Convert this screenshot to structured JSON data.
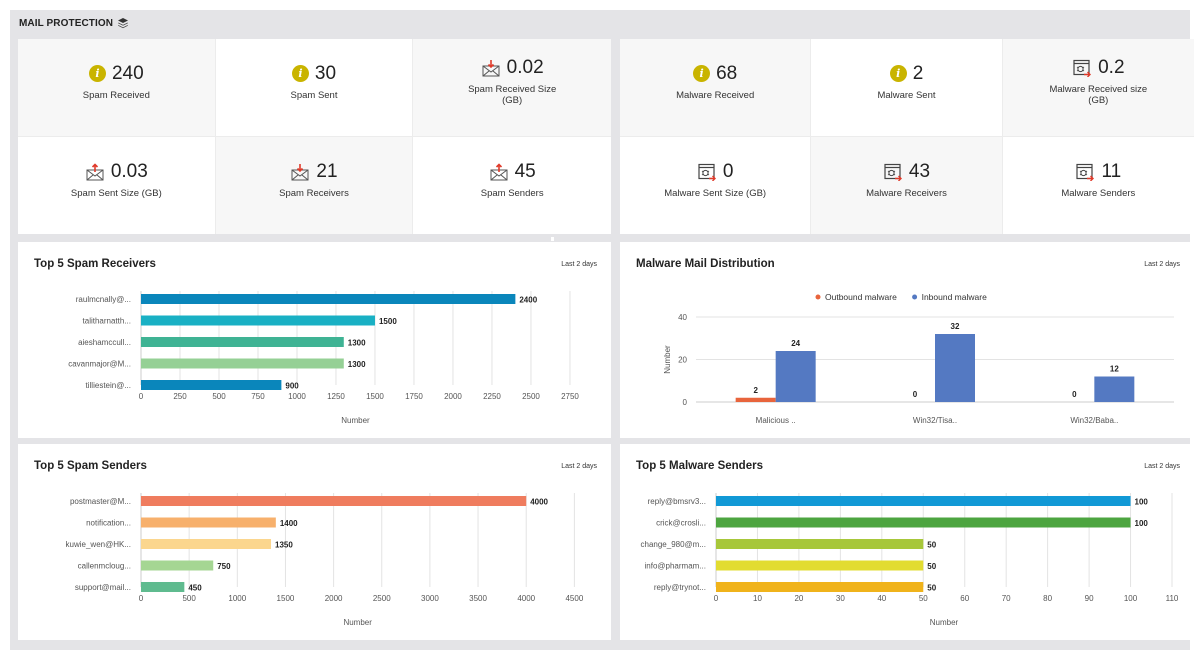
{
  "section": {
    "title": "MAIL PROTECTION",
    "icon": "layers-icon"
  },
  "spam_stats": [
    {
      "icon": "info-icon",
      "value": "240",
      "label": "Spam Received"
    },
    {
      "icon": "info-icon",
      "value": "30",
      "label": "Spam Sent"
    },
    {
      "icon": "mail-in-icon",
      "value": "0.02",
      "label": "Spam Received Size (GB)"
    },
    {
      "icon": "mail-out-icon",
      "value": "0.03",
      "label": "Spam Sent Size (GB)"
    },
    {
      "icon": "mail-in-icon",
      "value": "21",
      "label": "Spam Receivers"
    },
    {
      "icon": "mail-out-icon",
      "value": "45",
      "label": "Spam Senders"
    }
  ],
  "malware_stats": [
    {
      "icon": "info-icon",
      "value": "68",
      "label": "Malware Received"
    },
    {
      "icon": "info-icon",
      "value": "2",
      "label": "Malware Sent"
    },
    {
      "icon": "malware-window-icon",
      "value": "0.2",
      "label": "Malware Received size (GB)"
    },
    {
      "icon": "malware-window-icon",
      "value": "0",
      "label": "Malware Sent Size (GB)"
    },
    {
      "icon": "malware-window-icon",
      "value": "43",
      "label": "Malware Receivers"
    },
    {
      "icon": "malware-window-icon",
      "value": "11",
      "label": "Malware Senders"
    }
  ],
  "cards": {
    "spam_receivers": {
      "title": "Top 5 Spam Receivers",
      "range": "Last 2 days"
    },
    "malware_dist": {
      "title": "Malware Mail Distribution",
      "range": "Last 2 days"
    },
    "spam_senders": {
      "title": "Top 5 Spam Senders",
      "range": "Last 2 days"
    },
    "malware_senders": {
      "title": "Top 5 Malware Senders",
      "range": "Last 2 days"
    }
  },
  "chart_data": [
    {
      "id": "spam_receivers",
      "type": "bar",
      "orientation": "horizontal",
      "categories": [
        "raulmcnally@...",
        "talitharnatth...",
        "aieshamccull...",
        "cavanmajor@M...",
        "tilliestein@..."
      ],
      "values": [
        2400,
        1500,
        1300,
        1300,
        900
      ],
      "colors": [
        "#0a86bb",
        "#19b0c4",
        "#3fb394",
        "#95d095",
        "#0a86bb"
      ],
      "xlabel": "Number",
      "xticks": [
        0,
        250,
        500,
        750,
        1000,
        1250,
        1500,
        1750,
        2000,
        2250,
        2500,
        2750
      ],
      "xlim": [
        0,
        2840
      ]
    },
    {
      "id": "malware_dist",
      "type": "bar",
      "orientation": "vertical",
      "categories": [
        "Malicious ..",
        "Win32/Tisa..",
        "Win32/Baba.."
      ],
      "series": [
        {
          "name": "Outbound malware",
          "color": "#e8643c",
          "values": [
            2,
            0,
            0
          ]
        },
        {
          "name": "Inbound malware",
          "color": "#5479c2",
          "values": [
            24,
            32,
            12
          ]
        }
      ],
      "ylabel": "Number",
      "yticks": [
        0,
        20,
        40
      ],
      "ylim": [
        0,
        40
      ],
      "legend": "top-center"
    },
    {
      "id": "spam_senders",
      "type": "bar",
      "orientation": "horizontal",
      "categories": [
        "postmaster@M...",
        "notification...",
        "kuwie_wen@HK...",
        "callenmcloug...",
        "support@mail..."
      ],
      "values": [
        4000,
        1400,
        1350,
        750,
        450
      ],
      "colors": [
        "#ef7c5e",
        "#f7b06c",
        "#fbd68e",
        "#a5d693",
        "#5fbb8f"
      ],
      "xlabel": "Number",
      "xticks": [
        0,
        500,
        1000,
        1500,
        2000,
        2500,
        3000,
        3500,
        4000,
        4500
      ],
      "xlim": [
        0,
        4600
      ]
    },
    {
      "id": "malware_senders",
      "type": "bar",
      "orientation": "horizontal",
      "categories": [
        "reply@bmsrv3...",
        "crick@crosli...",
        "change_980@m...",
        "info@pharmam...",
        "reply@trynot..."
      ],
      "values": [
        100,
        100,
        50,
        50,
        50
      ],
      "colors": [
        "#1199d6",
        "#4da540",
        "#a7c73a",
        "#e2dc31",
        "#f0b31b"
      ],
      "xlabel": "Number",
      "xticks": [
        0,
        10,
        20,
        30,
        40,
        50,
        60,
        70,
        80,
        90,
        100,
        110
      ],
      "xlim": [
        0,
        110
      ]
    }
  ]
}
